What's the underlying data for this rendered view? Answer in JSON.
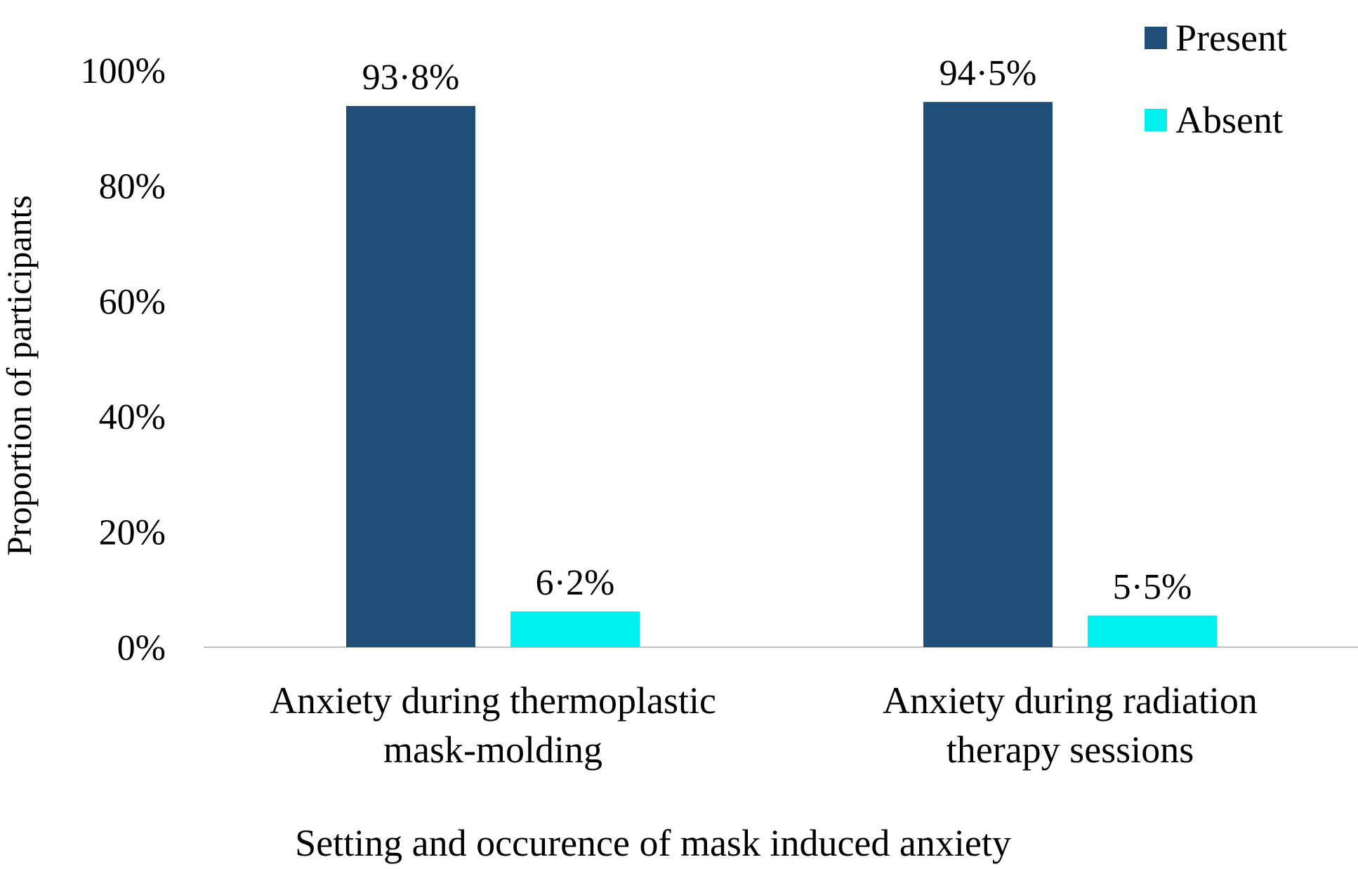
{
  "chart_data": {
    "type": "bar",
    "categories": [
      [
        "Anxiety during thermoplastic",
        "mask-molding"
      ],
      [
        "Anxiety during radiation",
        "therapy sessions"
      ]
    ],
    "series": [
      {
        "name": "Present",
        "color": "#1f4e79",
        "values": [
          93.8,
          94.5
        ],
        "labels": [
          "93·8%",
          "94·5%"
        ]
      },
      {
        "name": "Absent",
        "color": "#00f0f0",
        "values": [
          6.2,
          5.5
        ],
        "labels": [
          "6·2%",
          "5·5%"
        ]
      }
    ],
    "title": "",
    "xlabel": "Setting and occurence of mask induced anxiety",
    "ylabel": "Proportion of participants",
    "ylim": [
      0,
      100
    ],
    "yticks": [
      0,
      20,
      40,
      60,
      80,
      100
    ],
    "ytick_labels": [
      "0%",
      "20%",
      "40%",
      "60%",
      "80%",
      "100%"
    ],
    "grid": false,
    "legend_position": "top-right",
    "axis_line_color": "#bfbfbf"
  }
}
